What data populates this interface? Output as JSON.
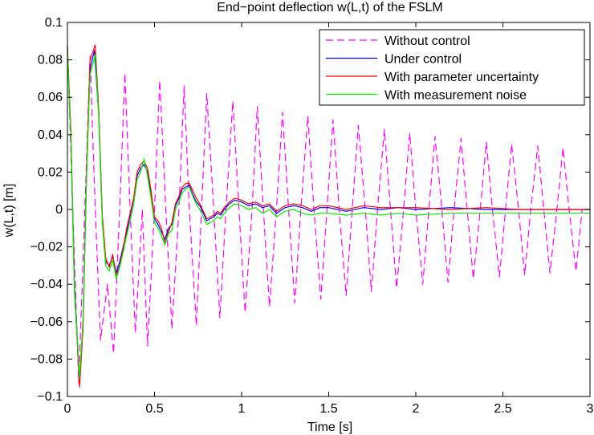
{
  "chart_data": {
    "type": "line",
    "title": "End−point deflection w(L,t) of the FSLM",
    "xlabel": "Time [s]",
    "ylabel": "w(L,t) [m]",
    "xlim": [
      0,
      3
    ],
    "ylim": [
      -0.1,
      0.1
    ],
    "x_ticks": [
      0,
      0.5,
      1,
      1.5,
      2,
      2.5,
      3
    ],
    "x_tick_labels": [
      "0",
      "0.5",
      "1",
      "1.5",
      "2",
      "2.5",
      "3"
    ],
    "y_ticks": [
      0.1,
      0.08,
      0.06,
      0.04,
      0.02,
      0,
      -0.02,
      -0.04,
      -0.06,
      -0.08,
      -0.1
    ],
    "y_tick_labels": [
      "0.1",
      "0.08",
      "0.06",
      "0.04",
      "0.02",
      "0",
      "−0.02",
      "−0.04",
      "−0.06",
      "−0.08",
      "−0.1"
    ],
    "grid": false,
    "legend_position": "top-right",
    "series": [
      {
        "name": "Without control",
        "color": "#ff00ff",
        "dash": "dashed",
        "x": [
          0,
          0.03,
          0.065,
          0.1,
          0.13,
          0.16,
          0.19,
          0.23,
          0.265,
          0.3,
          0.33,
          0.36,
          0.39,
          0.43,
          0.46,
          0.5,
          0.53,
          0.565,
          0.6,
          0.64,
          0.67,
          0.7,
          0.74,
          0.77,
          0.8,
          0.84,
          0.875,
          0.91,
          0.95,
          0.985,
          1.02,
          1.06,
          1.09,
          1.125,
          1.16,
          1.2,
          1.235,
          1.27,
          1.305,
          1.34,
          1.38,
          1.415,
          1.455,
          1.49,
          1.525,
          1.56,
          1.6,
          1.635,
          1.67,
          1.71,
          1.745,
          1.78,
          1.82,
          1.855,
          1.89,
          1.93,
          1.965,
          2.0,
          2.04,
          2.075,
          2.11,
          2.15,
          2.185,
          2.22,
          2.26,
          2.295,
          2.33,
          2.37,
          2.405,
          2.44,
          2.48,
          2.515,
          2.55,
          2.59,
          2.625,
          2.66,
          2.7,
          2.735,
          2.77,
          2.81,
          2.845,
          2.88,
          2.92,
          2.955,
          3.0
        ],
        "y": [
          0.088,
          0.0,
          -0.093,
          0.0,
          0.082,
          0.0,
          -0.07,
          -0.04,
          -0.077,
          0.0,
          0.073,
          0.0,
          -0.066,
          0.0,
          -0.073,
          0.0,
          0.069,
          0.0,
          -0.064,
          0.0,
          0.066,
          0.0,
          -0.062,
          0.0,
          0.062,
          0.0,
          -0.058,
          0.0,
          0.058,
          0.0,
          -0.055,
          0.0,
          0.055,
          0.0,
          -0.052,
          0.0,
          0.052,
          0.0,
          -0.05,
          0.0,
          0.05,
          0.0,
          -0.048,
          0.0,
          0.048,
          0.0,
          -0.046,
          0.0,
          0.045,
          0.0,
          -0.044,
          0.0,
          0.043,
          0.0,
          -0.042,
          0.0,
          0.041,
          0.0,
          -0.04,
          0.0,
          0.039,
          0.0,
          -0.039,
          0.0,
          0.038,
          0.0,
          -0.037,
          0.0,
          0.036,
          0.0,
          -0.036,
          0.0,
          0.035,
          0.0,
          -0.035,
          0.0,
          0.034,
          0.0,
          -0.034,
          0.0,
          0.033,
          0.0,
          -0.033,
          0.0,
          0.0
        ]
      },
      {
        "name": "Under control",
        "color": "#0000ff",
        "dash": "solid",
        "x": [
          0,
          0.02,
          0.04,
          0.07,
          0.09,
          0.11,
          0.13,
          0.155,
          0.18,
          0.2,
          0.22,
          0.24,
          0.26,
          0.28,
          0.3,
          0.32,
          0.34,
          0.36,
          0.38,
          0.4,
          0.42,
          0.44,
          0.46,
          0.48,
          0.5,
          0.52,
          0.54,
          0.56,
          0.58,
          0.6,
          0.62,
          0.64,
          0.66,
          0.68,
          0.7,
          0.72,
          0.74,
          0.76,
          0.78,
          0.8,
          0.82,
          0.84,
          0.86,
          0.88,
          0.9,
          0.93,
          0.96,
          1.0,
          1.04,
          1.08,
          1.12,
          1.16,
          1.2,
          1.25,
          1.3,
          1.35,
          1.4,
          1.45,
          1.5,
          1.6,
          1.7,
          1.8,
          1.9,
          2.0,
          2.2,
          2.4,
          2.6,
          2.8,
          3.0
        ],
        "y": [
          0.086,
          0.04,
          -0.04,
          -0.092,
          -0.06,
          0.02,
          0.075,
          0.085,
          0.05,
          -0.005,
          -0.028,
          -0.03,
          -0.025,
          -0.034,
          -0.028,
          -0.02,
          -0.012,
          -0.003,
          0.005,
          0.018,
          0.022,
          0.024,
          0.02,
          0.008,
          -0.005,
          -0.008,
          -0.012,
          -0.016,
          -0.01,
          -0.008,
          0.002,
          0.006,
          0.011,
          0.012,
          0.013,
          0.008,
          0.004,
          0.002,
          -0.002,
          -0.006,
          -0.005,
          -0.004,
          -0.002,
          -0.003,
          0.0,
          0.003,
          0.005,
          0.004,
          0.002,
          0.003,
          0.001,
          0.002,
          -0.002,
          0.001,
          0.002,
          0.001,
          -0.001,
          0.001,
          0.001,
          -0.001,
          0.001,
          0.0,
          0.001,
          0.0,
          0.001,
          0.0,
          0.0,
          0.0,
          0.0
        ]
      },
      {
        "name": "With parameter uncertainty",
        "color": "#ff0000",
        "dash": "solid",
        "x": [
          0,
          0.02,
          0.04,
          0.07,
          0.09,
          0.11,
          0.13,
          0.16,
          0.18,
          0.2,
          0.22,
          0.24,
          0.26,
          0.28,
          0.3,
          0.32,
          0.34,
          0.36,
          0.38,
          0.4,
          0.42,
          0.44,
          0.46,
          0.48,
          0.5,
          0.52,
          0.54,
          0.56,
          0.58,
          0.6,
          0.62,
          0.64,
          0.66,
          0.68,
          0.7,
          0.72,
          0.74,
          0.76,
          0.78,
          0.8,
          0.82,
          0.84,
          0.86,
          0.88,
          0.9,
          0.93,
          0.96,
          1.0,
          1.04,
          1.08,
          1.12,
          1.16,
          1.2,
          1.25,
          1.3,
          1.35,
          1.4,
          1.45,
          1.5,
          1.6,
          1.7,
          1.8,
          1.9,
          2.0,
          2.2,
          2.4,
          2.6,
          2.8,
          3.0
        ],
        "y": [
          0.087,
          0.042,
          -0.042,
          -0.095,
          -0.063,
          0.022,
          0.08,
          0.088,
          0.052,
          -0.003,
          -0.026,
          -0.031,
          -0.024,
          -0.036,
          -0.03,
          -0.021,
          -0.01,
          -0.002,
          0.006,
          0.02,
          0.024,
          0.026,
          0.022,
          0.01,
          -0.004,
          -0.006,
          -0.01,
          -0.018,
          -0.012,
          -0.007,
          0.003,
          0.007,
          0.012,
          0.014,
          0.014,
          0.01,
          0.006,
          0.003,
          -0.001,
          -0.005,
          -0.004,
          -0.003,
          -0.001,
          -0.002,
          0.001,
          0.004,
          0.006,
          0.005,
          0.003,
          0.004,
          0.002,
          0.003,
          -0.001,
          0.002,
          0.003,
          0.002,
          0.0,
          0.002,
          0.002,
          0.0,
          0.002,
          0.001,
          0.001,
          0.001,
          0.0,
          0.001,
          0.0,
          0.0,
          0.0
        ]
      },
      {
        "name": "With measurement noise",
        "color": "#00ee00",
        "dash": "solid",
        "x": [
          0,
          0.02,
          0.04,
          0.07,
          0.09,
          0.11,
          0.13,
          0.16,
          0.18,
          0.2,
          0.22,
          0.24,
          0.26,
          0.28,
          0.3,
          0.32,
          0.34,
          0.36,
          0.38,
          0.4,
          0.42,
          0.44,
          0.46,
          0.48,
          0.5,
          0.52,
          0.54,
          0.56,
          0.58,
          0.6,
          0.62,
          0.64,
          0.66,
          0.68,
          0.7,
          0.72,
          0.74,
          0.76,
          0.78,
          0.8,
          0.82,
          0.84,
          0.86,
          0.88,
          0.9,
          0.93,
          0.96,
          1.0,
          1.04,
          1.08,
          1.12,
          1.16,
          1.2,
          1.25,
          1.3,
          1.35,
          1.4,
          1.45,
          1.5,
          1.6,
          1.7,
          1.8,
          1.9,
          2.0,
          2.2,
          2.4,
          2.6,
          2.8,
          3.0
        ],
        "y": [
          0.085,
          0.038,
          -0.044,
          -0.09,
          -0.058,
          0.018,
          0.072,
          0.083,
          0.048,
          -0.007,
          -0.03,
          -0.033,
          -0.027,
          -0.037,
          -0.031,
          -0.023,
          -0.014,
          -0.006,
          0.003,
          0.016,
          0.02,
          0.027,
          0.018,
          0.006,
          -0.007,
          -0.01,
          -0.014,
          -0.019,
          -0.013,
          -0.011,
          0.0,
          0.004,
          0.009,
          0.011,
          0.012,
          0.007,
          0.003,
          0.0,
          -0.004,
          -0.008,
          -0.007,
          -0.006,
          -0.004,
          -0.005,
          -0.002,
          0.001,
          0.003,
          0.002,
          0.0,
          0.001,
          -0.002,
          0.0,
          -0.004,
          -0.001,
          0.0,
          -0.002,
          -0.003,
          -0.002,
          -0.002,
          -0.003,
          -0.002,
          -0.003,
          -0.002,
          -0.003,
          -0.002,
          -0.002,
          -0.002,
          -0.002,
          -0.002
        ]
      }
    ]
  }
}
